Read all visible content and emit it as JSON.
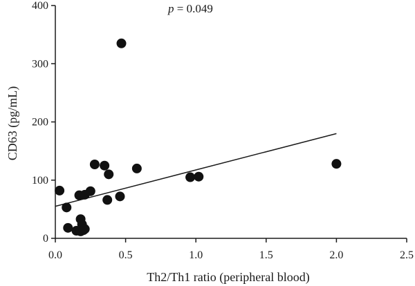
{
  "chart_data": {
    "type": "scatter",
    "title": "",
    "xlabel": "Th2/Th1 ratio (peripheral blood)",
    "ylabel": "CD63 (pg/mL)",
    "xlim": [
      0,
      2.5
    ],
    "ylim": [
      0,
      400
    ],
    "xticks": [
      "0.0",
      "0.5",
      "1.0",
      "1.5",
      "2.0",
      "2.5"
    ],
    "yticks": [
      "0",
      "100",
      "200",
      "300",
      "400"
    ],
    "grid": false,
    "annotation": {
      "italic": "p",
      "rest": " = 0.049"
    },
    "series": [
      {
        "points": [
          {
            "x": 0.03,
            "y": 82
          },
          {
            "x": 0.08,
            "y": 53
          },
          {
            "x": 0.09,
            "y": 18
          },
          {
            "x": 0.15,
            "y": 13
          },
          {
            "x": 0.17,
            "y": 74
          },
          {
            "x": 0.18,
            "y": 33
          },
          {
            "x": 0.18,
            "y": 12
          },
          {
            "x": 0.19,
            "y": 24
          },
          {
            "x": 0.2,
            "y": 14
          },
          {
            "x": 0.21,
            "y": 16
          },
          {
            "x": 0.21,
            "y": 75
          },
          {
            "x": 0.25,
            "y": 81
          },
          {
            "x": 0.28,
            "y": 127
          },
          {
            "x": 0.35,
            "y": 125
          },
          {
            "x": 0.37,
            "y": 66
          },
          {
            "x": 0.38,
            "y": 110
          },
          {
            "x": 0.46,
            "y": 72
          },
          {
            "x": 0.47,
            "y": 335
          },
          {
            "x": 0.58,
            "y": 120
          },
          {
            "x": 0.96,
            "y": 105
          },
          {
            "x": 1.02,
            "y": 106
          },
          {
            "x": 2.0,
            "y": 128
          }
        ]
      }
    ],
    "trendline": {
      "x": [
        0.0,
        2.0
      ],
      "y": [
        55,
        180
      ]
    }
  }
}
